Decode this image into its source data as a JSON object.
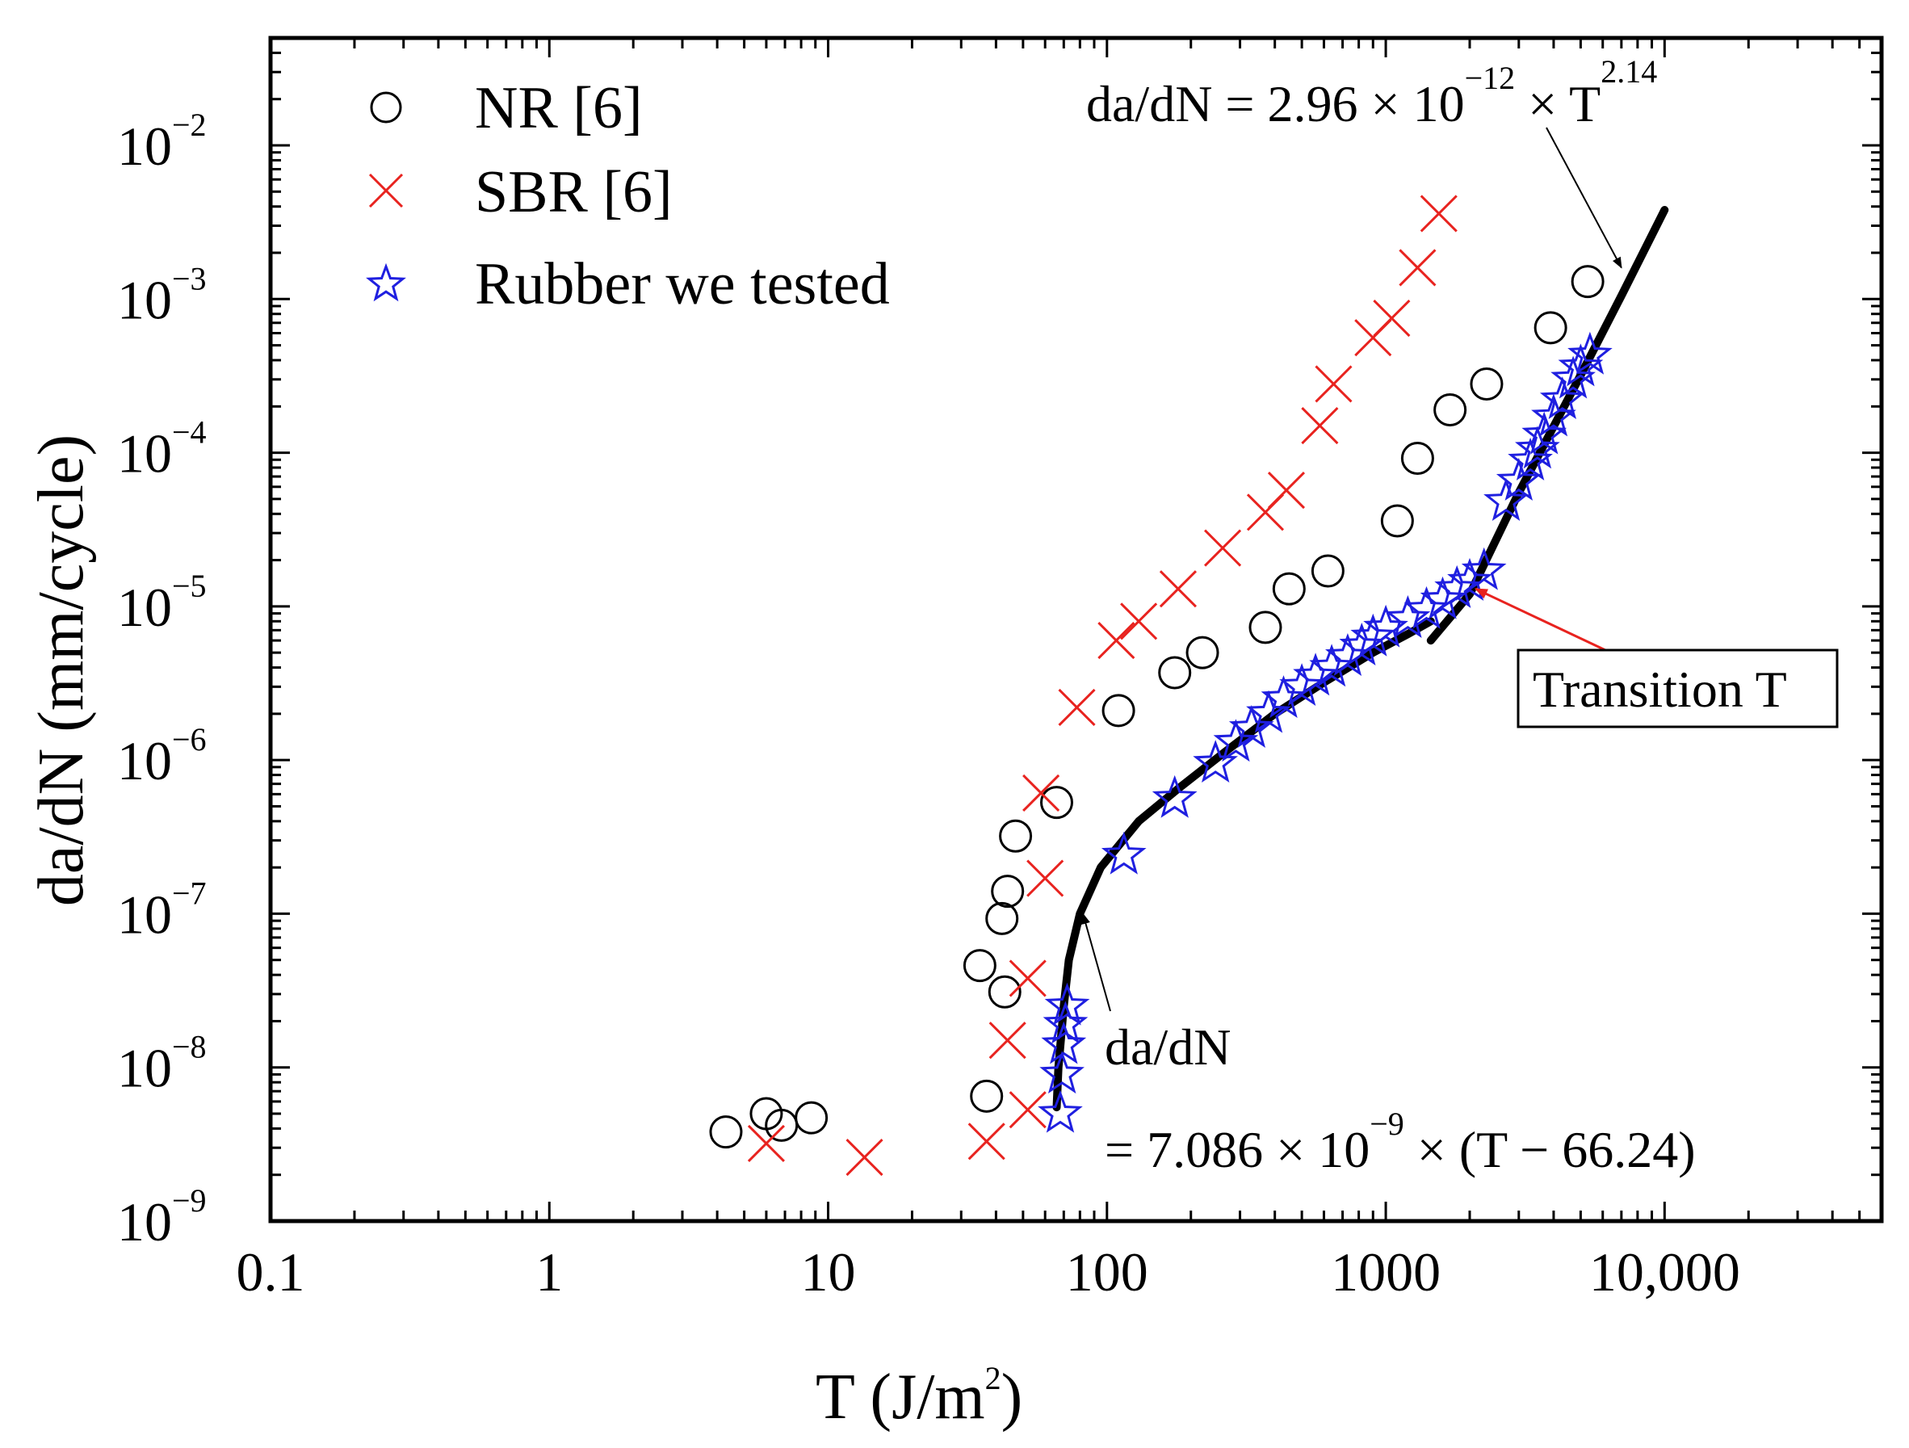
{
  "chart_data": {
    "type": "scatter",
    "xscale": "log",
    "yscale": "log",
    "xlim": [
      0.1,
      60000
    ],
    "ylim": [
      1e-09,
      0.05
    ],
    "xlabel": "T (J/m",
    "xlabel_sup": "2",
    "xlabel_close": ")",
    "ylabel": "da/dN (mm/cycle)",
    "xticks": [
      {
        "value": 0.1,
        "label": "0.1"
      },
      {
        "value": 1,
        "label": "1"
      },
      {
        "value": 10,
        "label": "10"
      },
      {
        "value": 100,
        "label": "100"
      },
      {
        "value": 1000,
        "label": "1000"
      },
      {
        "value": 10000,
        "label": "10,000"
      }
    ],
    "yticks": [
      {
        "value": 1e-09,
        "base": "10",
        "exp": "−9"
      },
      {
        "value": 1e-08,
        "base": "10",
        "exp": "−8"
      },
      {
        "value": 1e-07,
        "base": "10",
        "exp": "−7"
      },
      {
        "value": 1e-06,
        "base": "10",
        "exp": "−6"
      },
      {
        "value": 1e-05,
        "base": "10",
        "exp": "−5"
      },
      {
        "value": 0.0001,
        "base": "10",
        "exp": "−4"
      },
      {
        "value": 0.001,
        "base": "10",
        "exp": "−3"
      },
      {
        "value": 0.01,
        "base": "10",
        "exp": "−2"
      }
    ],
    "legend_position": "top-left",
    "series": [
      {
        "name": "NR [6]",
        "marker": "circle",
        "color": "#000000",
        "points": [
          [
            4.3,
            3.8e-09
          ],
          [
            6.0,
            5e-09
          ],
          [
            6.8,
            4.2e-09
          ],
          [
            8.7,
            4.7e-09
          ],
          [
            37,
            6.5e-09
          ],
          [
            35,
            4.6e-08
          ],
          [
            43,
            3.1e-08
          ],
          [
            42,
            9.3e-08
          ],
          [
            44,
            1.4e-07
          ],
          [
            47,
            3.2e-07
          ],
          [
            66,
            5.3e-07
          ],
          [
            110,
            2.1e-06
          ],
          [
            175,
            3.7e-06
          ],
          [
            220,
            5e-06
          ],
          [
            370,
            7.3e-06
          ],
          [
            450,
            1.3e-05
          ],
          [
            620,
            1.7e-05
          ],
          [
            1100,
            3.6e-05
          ],
          [
            1300,
            9.2e-05
          ],
          [
            1700,
            0.00019
          ],
          [
            2300,
            0.00028
          ],
          [
            3900,
            0.00065
          ],
          [
            5300,
            0.0013
          ]
        ]
      },
      {
        "name": "SBR [6]",
        "marker": "x",
        "color": "#e8231f",
        "points": [
          [
            6.0,
            3.2e-09
          ],
          [
            13.5,
            2.6e-09
          ],
          [
            37,
            3.3e-09
          ],
          [
            52,
            5.3e-09
          ],
          [
            44,
            1.5e-08
          ],
          [
            52,
            3.8e-08
          ],
          [
            60,
            1.7e-07
          ],
          [
            58,
            6.1e-07
          ],
          [
            78,
            2.2e-06
          ],
          [
            108,
            6e-06
          ],
          [
            130,
            8e-06
          ],
          [
            180,
            1.3e-05
          ],
          [
            260,
            2.4e-05
          ],
          [
            370,
            4.1e-05
          ],
          [
            440,
            5.7e-05
          ],
          [
            580,
            0.00015
          ],
          [
            650,
            0.00028
          ],
          [
            900,
            0.00056
          ],
          [
            1050,
            0.00075
          ],
          [
            1300,
            0.0016
          ],
          [
            1550,
            0.0036
          ]
        ]
      },
      {
        "name": "Rubber we tested",
        "marker": "star",
        "color": "#1f1fe0",
        "points": [
          [
            68,
            5e-09
          ],
          [
            69,
            9e-09
          ],
          [
            70,
            1.4e-08
          ],
          [
            71,
            1.9e-08
          ],
          [
            72,
            2.5e-08
          ],
          [
            115,
            2.4e-07
          ],
          [
            175,
            5.6e-07
          ],
          [
            245,
            9.5e-07
          ],
          [
            290,
            1.3e-06
          ],
          [
            330,
            1.6e-06
          ],
          [
            380,
            2e-06
          ],
          [
            430,
            2.5e-06
          ],
          [
            500,
            3e-06
          ],
          [
            560,
            3.5e-06
          ],
          [
            640,
            4e-06
          ],
          [
            730,
            4.7e-06
          ],
          [
            820,
            5.5e-06
          ],
          [
            900,
            6.3e-06
          ],
          [
            1000,
            7.2e-06
          ],
          [
            1200,
            8.3e-06
          ],
          [
            1400,
            9.5e-06
          ],
          [
            1600,
            1.1e-05
          ],
          [
            1800,
            1.3e-05
          ],
          [
            2000,
            1.45e-05
          ],
          [
            2250,
            1.7e-05
          ],
          [
            2700,
            4.8e-05
          ],
          [
            3000,
            6.5e-05
          ],
          [
            3300,
            8.8e-05
          ],
          [
            3500,
            0.000105
          ],
          [
            3700,
            0.00013
          ],
          [
            4000,
            0.00017
          ],
          [
            4300,
            0.00022
          ],
          [
            4700,
            0.0003
          ],
          [
            5000,
            0.00036
          ],
          [
            5400,
            0.00043
          ]
        ]
      }
    ],
    "fit_curves": [
      {
        "name": "low-T fit",
        "points": [
          [
            66,
            5.5e-09
          ],
          [
            67,
            1e-08
          ],
          [
            70,
            2.5e-08
          ],
          [
            73,
            5e-08
          ],
          [
            80,
            1e-07
          ],
          [
            95,
            2e-07
          ],
          [
            130,
            4e-07
          ],
          [
            180,
            6.5e-07
          ],
          [
            260,
            1.1e-06
          ],
          [
            400,
            2e-06
          ],
          [
            600,
            3.2e-06
          ],
          [
            900,
            5e-06
          ],
          [
            1200,
            6.6e-06
          ],
          [
            1450,
            8e-06
          ]
        ]
      },
      {
        "name": "high-T fit",
        "points": [
          [
            1450,
            6e-06
          ],
          [
            2000,
            1.2e-05
          ],
          [
            3000,
            5.5e-05
          ],
          [
            5000,
            0.00032
          ],
          [
            7000,
            0.00105
          ],
          [
            10000,
            0.0038
          ]
        ]
      }
    ],
    "annotations": {
      "power_law": {
        "prefix": "da/dN = 2.96 × 10",
        "exp1": "−12",
        "mid": " × T",
        "exp2": "2.14",
        "arrow_to": [
          7000,
          0.0016
        ]
      },
      "linear_line1": "da/dN",
      "linear_line2_prefix": "= 7.086 × 10",
      "linear_line2_exp": "−9",
      "linear_line2_suffix": " × (T − 66.24)",
      "linear_arrow_to": [
        82,
        1e-07
      ],
      "transition_label": "Transition T",
      "transition_arrow_to": [
        2100,
        1.3e-05
      ],
      "transition_color": "#e8231f"
    }
  }
}
